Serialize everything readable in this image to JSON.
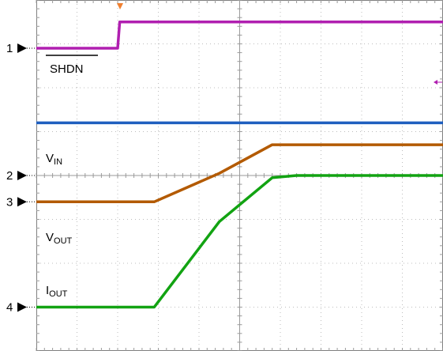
{
  "chart_data": {
    "type": "line",
    "title": "",
    "xlabel": "",
    "ylabel": "",
    "grid": true,
    "grid_divisions": {
      "x": 10,
      "y": 8
    },
    "xlim": [
      0,
      10
    ],
    "ylim": [
      0,
      8
    ],
    "x": [
      0,
      2.0,
      2.05,
      2.9,
      4.5,
      5.8,
      6.4,
      10
    ],
    "series": [
      {
        "name": "SHDN",
        "color": "#b01fb0",
        "values": [
          6.9,
          6.9,
          7.5,
          7.5,
          7.5,
          7.5,
          7.5,
          7.5
        ]
      },
      {
        "name": "V",
        "name_sub": "IN",
        "color": "#1f5fbf",
        "values": [
          5.2,
          5.2,
          5.2,
          5.2,
          5.2,
          5.2,
          5.2,
          5.2
        ]
      },
      {
        "name": "V",
        "name_sub": "OUT",
        "color": "#b35a00",
        "values": [
          3.4,
          3.4,
          3.4,
          3.4,
          4.05,
          4.7,
          4.7,
          4.7
        ]
      },
      {
        "name": "I",
        "name_sub": "OUT",
        "color": "#12a312",
        "values": [
          1.0,
          1.0,
          1.0,
          1.0,
          2.95,
          3.95,
          4.0,
          4.0
        ]
      }
    ],
    "channel_markers": [
      {
        "label": "1",
        "level": 6.9
      },
      {
        "label": "2",
        "level": 4.0
      },
      {
        "label": "3",
        "level": 3.4
      },
      {
        "label": "4",
        "level": 1.0
      }
    ]
  }
}
